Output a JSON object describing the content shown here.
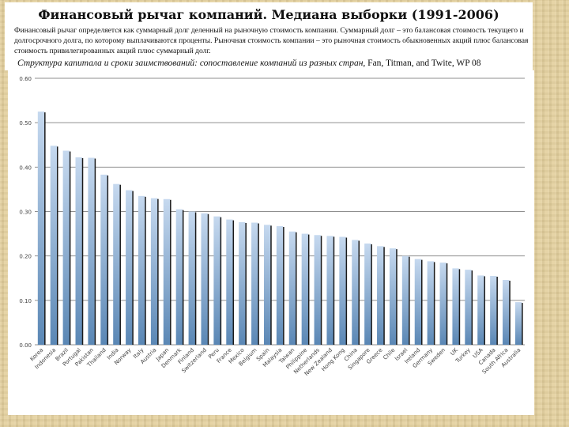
{
  "slide": {
    "title": "Финансовый рычаг компаний. Медиана выборки (1991-2006)",
    "description": "Финансовый рычаг определяется как суммарный долг деленный на рыночную стоимость компании. Суммарный долг – это балансовая стоимость текущего и долгосрочного долга, по которому выплачиваются проценты. Рыночная стоимость компании – это рыночная стоимость обыкновенных акций плюс балансовая стоимость привилегированных акций плюс суммарный долг.",
    "source_italic": "Структура капитала и сроки заимствований: сопоставление компаний из разных стран",
    "source_rest": ", Fan, Titman, and Twite, WP 08"
  },
  "colors": {
    "bar_light": "#c6d9ef",
    "bar_dark": "#5a87b5",
    "bar_shadow": "#1a1a1a",
    "grid": "#8f8f8f",
    "axis_text": "#444444"
  },
  "chart_data": {
    "type": "bar",
    "title": "",
    "xlabel": "",
    "ylabel": "",
    "ylim": [
      0,
      0.6
    ],
    "grid": true,
    "legend": "none",
    "y_tick_labels": [
      "0.00",
      "0.10",
      "0.20",
      "0.30",
      "0.40",
      "0.50",
      "0.60"
    ],
    "categories": [
      "Korea",
      "Indonesia",
      "Brazil",
      "Portugal",
      "Pakistan",
      "Thailand",
      "India",
      "Norway",
      "Italy",
      "Austria",
      "Japan",
      "Denmark",
      "Finland",
      "Switzerland",
      "Peru",
      "France",
      "Mexico",
      "Belgium",
      "Spain",
      "Malaysia",
      "Taiwan",
      "Philippine",
      "Netherlands",
      "New Zealand",
      "Hong Kong",
      "China",
      "Singapore",
      "Greece",
      "Chile",
      "Israel",
      "Ireland",
      "Germany",
      "Sweden",
      "UK",
      "Turkey",
      "USA",
      "Canada",
      "South Africa",
      "Australia"
    ],
    "values": [
      0.525,
      0.448,
      0.437,
      0.422,
      0.421,
      0.383,
      0.362,
      0.348,
      0.335,
      0.33,
      0.328,
      0.305,
      0.3,
      0.296,
      0.289,
      0.282,
      0.276,
      0.275,
      0.27,
      0.267,
      0.255,
      0.25,
      0.247,
      0.245,
      0.243,
      0.236,
      0.228,
      0.222,
      0.217,
      0.2,
      0.193,
      0.188,
      0.185,
      0.172,
      0.169,
      0.156,
      0.155,
      0.146,
      0.096
    ]
  }
}
